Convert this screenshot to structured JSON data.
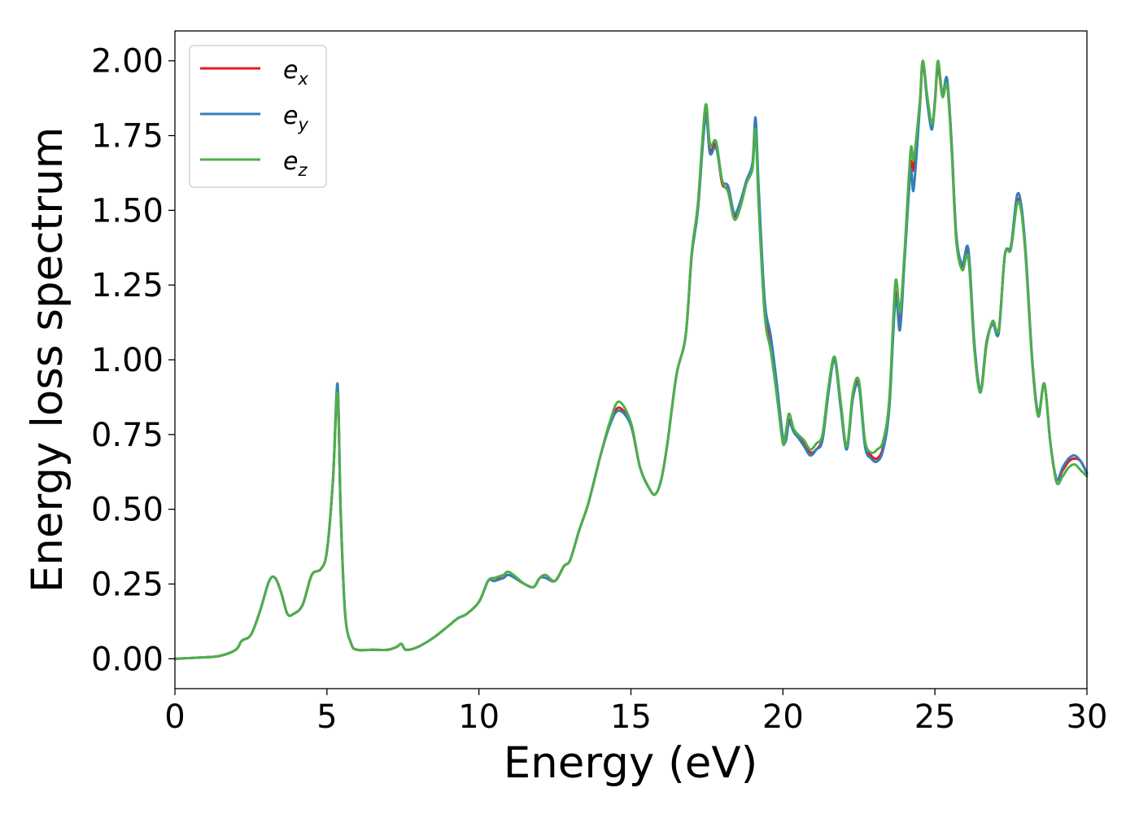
{
  "chart_data": {
    "type": "line",
    "xlabel": "Energy (eV)",
    "ylabel": "Energy loss spectrum",
    "xlim": [
      0,
      30
    ],
    "ylim": [
      -0.1,
      2.1
    ],
    "xticks": [
      0,
      5,
      10,
      15,
      20,
      25,
      30
    ],
    "xtick_labels": [
      "0",
      "5",
      "10",
      "15",
      "20",
      "25",
      "30"
    ],
    "yticks": [
      0,
      0.25,
      0.5,
      0.75,
      1.0,
      1.25,
      1.5,
      1.75,
      2.0
    ],
    "ytick_labels": [
      "0.00",
      "0.25",
      "0.50",
      "0.75",
      "1.00",
      "1.25",
      "1.50",
      "1.75",
      "2.00"
    ],
    "grid": false,
    "legend_position": "top-left",
    "series": [
      {
        "name": "e_x",
        "label_main": "e",
        "label_sub": "x",
        "color": "#e41a1c",
        "x": [
          0,
          1,
          1.5,
          2,
          2.2,
          2.5,
          2.8,
          3.1,
          3.3,
          3.5,
          3.7,
          3.9,
          4.2,
          4.5,
          4.8,
          5.0,
          5.2,
          5.35,
          5.45,
          5.6,
          5.8,
          6.0,
          6.5,
          7.0,
          7.3,
          7.45,
          7.6,
          8.0,
          8.5,
          9.0,
          9.3,
          9.6,
          10.0,
          10.3,
          10.5,
          10.8,
          11.0,
          11.5,
          11.8,
          12.0,
          12.2,
          12.5,
          12.8,
          13.0,
          13.3,
          13.6,
          14.0,
          14.3,
          14.6,
          15.0,
          15.3,
          15.6,
          15.8,
          16.0,
          16.2,
          16.5,
          16.8,
          17.0,
          17.2,
          17.45,
          17.6,
          17.8,
          18.0,
          18.2,
          18.4,
          18.6,
          18.8,
          19.0,
          19.1,
          19.2,
          19.4,
          19.6,
          19.8,
          20.0,
          20.1,
          20.2,
          20.35,
          20.5,
          20.7,
          20.9,
          21.1,
          21.3,
          21.5,
          21.7,
          21.9,
          22.1,
          22.3,
          22.5,
          22.7,
          22.9,
          23.1,
          23.3,
          23.5,
          23.7,
          23.85,
          24.0,
          24.2,
          24.3,
          24.5,
          24.6,
          24.75,
          24.9,
          25.0,
          25.1,
          25.25,
          25.4,
          25.55,
          25.7,
          25.9,
          26.1,
          26.3,
          26.5,
          26.7,
          26.9,
          27.1,
          27.3,
          27.5,
          27.7,
          27.85,
          28.0,
          28.2,
          28.4,
          28.6,
          28.8,
          29.0,
          29.2,
          29.4,
          29.6,
          29.8,
          30.0
        ],
        "y": [
          0,
          0.005,
          0.01,
          0.03,
          0.06,
          0.08,
          0.16,
          0.26,
          0.27,
          0.22,
          0.15,
          0.15,
          0.18,
          0.28,
          0.3,
          0.36,
          0.6,
          0.9,
          0.5,
          0.15,
          0.05,
          0.03,
          0.03,
          0.03,
          0.04,
          0.05,
          0.03,
          0.04,
          0.07,
          0.11,
          0.135,
          0.15,
          0.19,
          0.26,
          0.27,
          0.27,
          0.28,
          0.25,
          0.24,
          0.27,
          0.28,
          0.26,
          0.31,
          0.33,
          0.43,
          0.52,
          0.68,
          0.78,
          0.84,
          0.78,
          0.64,
          0.57,
          0.55,
          0.6,
          0.72,
          0.95,
          1.08,
          1.35,
          1.5,
          1.82,
          1.7,
          1.72,
          1.59,
          1.57,
          1.48,
          1.52,
          1.6,
          1.65,
          1.8,
          1.55,
          1.18,
          1.05,
          0.9,
          0.73,
          0.74,
          0.8,
          0.76,
          0.74,
          0.72,
          0.69,
          0.7,
          0.74,
          0.9,
          1.0,
          0.85,
          0.71,
          0.88,
          0.92,
          0.72,
          0.68,
          0.67,
          0.71,
          0.85,
          1.22,
          1.12,
          1.34,
          1.65,
          1.64,
          1.85,
          1.99,
          1.87,
          1.78,
          1.86,
          1.98,
          1.88,
          1.93,
          1.72,
          1.42,
          1.31,
          1.36,
          1.05,
          0.9,
          1.06,
          1.12,
          1.1,
          1.35,
          1.38,
          1.53,
          1.5,
          1.33,
          1.0,
          0.82,
          0.92,
          0.72,
          0.6,
          0.63,
          0.66,
          0.67,
          0.66,
          0.62
        ]
      },
      {
        "name": "e_y",
        "label_main": "e",
        "label_sub": "y",
        "color": "#377eb8",
        "x": [
          0,
          1,
          1.5,
          2,
          2.2,
          2.5,
          2.8,
          3.1,
          3.3,
          3.5,
          3.7,
          3.9,
          4.2,
          4.5,
          4.8,
          5.0,
          5.2,
          5.35,
          5.45,
          5.6,
          5.8,
          6.0,
          6.5,
          7.0,
          7.3,
          7.45,
          7.6,
          8.0,
          8.5,
          9.0,
          9.3,
          9.6,
          10.0,
          10.3,
          10.5,
          10.8,
          11.0,
          11.5,
          11.8,
          12.0,
          12.2,
          12.5,
          12.8,
          13.0,
          13.3,
          13.6,
          14.0,
          14.3,
          14.6,
          15.0,
          15.3,
          15.6,
          15.8,
          16.0,
          16.2,
          16.5,
          16.8,
          17.0,
          17.2,
          17.45,
          17.6,
          17.8,
          18.0,
          18.2,
          18.4,
          18.6,
          18.8,
          19.0,
          19.1,
          19.2,
          19.4,
          19.6,
          19.8,
          20.0,
          20.1,
          20.2,
          20.35,
          20.5,
          20.7,
          20.9,
          21.1,
          21.3,
          21.5,
          21.7,
          21.9,
          22.1,
          22.3,
          22.5,
          22.7,
          22.9,
          23.1,
          23.3,
          23.5,
          23.7,
          23.85,
          24.0,
          24.2,
          24.3,
          24.5,
          24.6,
          24.75,
          24.9,
          25.0,
          25.1,
          25.25,
          25.4,
          25.55,
          25.7,
          25.9,
          26.1,
          26.3,
          26.5,
          26.7,
          26.9,
          27.1,
          27.3,
          27.5,
          27.7,
          27.85,
          28.0,
          28.2,
          28.4,
          28.6,
          28.8,
          29.0,
          29.2,
          29.4,
          29.6,
          29.8,
          30.0
        ],
        "y": [
          0,
          0.005,
          0.01,
          0.03,
          0.06,
          0.08,
          0.16,
          0.26,
          0.27,
          0.22,
          0.15,
          0.15,
          0.18,
          0.28,
          0.3,
          0.36,
          0.6,
          0.92,
          0.5,
          0.15,
          0.05,
          0.03,
          0.03,
          0.03,
          0.04,
          0.05,
          0.03,
          0.04,
          0.07,
          0.11,
          0.135,
          0.15,
          0.19,
          0.26,
          0.26,
          0.27,
          0.28,
          0.25,
          0.24,
          0.27,
          0.27,
          0.26,
          0.31,
          0.33,
          0.43,
          0.52,
          0.68,
          0.78,
          0.83,
          0.78,
          0.64,
          0.57,
          0.55,
          0.6,
          0.72,
          0.95,
          1.08,
          1.35,
          1.5,
          1.81,
          1.69,
          1.71,
          1.6,
          1.58,
          1.49,
          1.53,
          1.6,
          1.66,
          1.81,
          1.58,
          1.2,
          1.08,
          0.92,
          0.74,
          0.73,
          0.79,
          0.76,
          0.74,
          0.71,
          0.68,
          0.7,
          0.73,
          0.89,
          1.0,
          0.84,
          0.7,
          0.87,
          0.91,
          0.71,
          0.67,
          0.66,
          0.7,
          0.84,
          1.2,
          1.1,
          1.33,
          1.63,
          1.57,
          1.84,
          2.0,
          1.86,
          1.77,
          1.87,
          1.99,
          1.89,
          1.94,
          1.72,
          1.42,
          1.32,
          1.37,
          1.05,
          0.9,
          1.06,
          1.12,
          1.09,
          1.35,
          1.38,
          1.55,
          1.51,
          1.34,
          1.0,
          0.82,
          0.92,
          0.72,
          0.6,
          0.64,
          0.67,
          0.68,
          0.66,
          0.62
        ]
      },
      {
        "name": "e_z",
        "label_main": "e",
        "label_sub": "z",
        "color": "#4daf4a",
        "x": [
          0,
          1,
          1.5,
          2,
          2.2,
          2.5,
          2.8,
          3.1,
          3.3,
          3.5,
          3.7,
          3.9,
          4.2,
          4.5,
          4.8,
          5.0,
          5.2,
          5.35,
          5.45,
          5.6,
          5.8,
          6.0,
          6.5,
          7.0,
          7.3,
          7.45,
          7.6,
          8.0,
          8.5,
          9.0,
          9.3,
          9.6,
          10.0,
          10.3,
          10.5,
          10.8,
          11.0,
          11.5,
          11.8,
          12.0,
          12.2,
          12.5,
          12.8,
          13.0,
          13.3,
          13.6,
          14.0,
          14.3,
          14.6,
          15.0,
          15.3,
          15.6,
          15.8,
          16.0,
          16.2,
          16.5,
          16.8,
          17.0,
          17.2,
          17.45,
          17.6,
          17.8,
          18.0,
          18.2,
          18.4,
          18.6,
          18.8,
          19.0,
          19.1,
          19.2,
          19.4,
          19.6,
          19.8,
          20.0,
          20.1,
          20.2,
          20.35,
          20.5,
          20.7,
          20.9,
          21.1,
          21.3,
          21.5,
          21.7,
          21.9,
          22.1,
          22.3,
          22.5,
          22.7,
          22.9,
          23.1,
          23.3,
          23.5,
          23.7,
          23.85,
          24.0,
          24.2,
          24.3,
          24.5,
          24.6,
          24.75,
          24.9,
          25.0,
          25.1,
          25.25,
          25.4,
          25.55,
          25.7,
          25.9,
          26.1,
          26.3,
          26.5,
          26.7,
          26.9,
          27.1,
          27.3,
          27.5,
          27.7,
          27.85,
          28.0,
          28.2,
          28.4,
          28.6,
          28.8,
          29.0,
          29.2,
          29.4,
          29.6,
          29.8,
          30.0
        ],
        "y": [
          0,
          0.005,
          0.01,
          0.03,
          0.06,
          0.08,
          0.16,
          0.26,
          0.27,
          0.22,
          0.15,
          0.15,
          0.18,
          0.28,
          0.3,
          0.36,
          0.6,
          0.89,
          0.5,
          0.15,
          0.05,
          0.03,
          0.03,
          0.03,
          0.04,
          0.05,
          0.03,
          0.04,
          0.07,
          0.11,
          0.135,
          0.15,
          0.19,
          0.26,
          0.27,
          0.28,
          0.29,
          0.25,
          0.24,
          0.27,
          0.28,
          0.26,
          0.31,
          0.33,
          0.43,
          0.52,
          0.68,
          0.79,
          0.86,
          0.79,
          0.64,
          0.57,
          0.55,
          0.6,
          0.72,
          0.95,
          1.08,
          1.36,
          1.52,
          1.85,
          1.72,
          1.73,
          1.6,
          1.56,
          1.47,
          1.51,
          1.59,
          1.64,
          1.77,
          1.52,
          1.15,
          1.03,
          0.88,
          0.72,
          0.76,
          0.82,
          0.77,
          0.75,
          0.73,
          0.7,
          0.72,
          0.75,
          0.91,
          1.01,
          0.86,
          0.71,
          0.89,
          0.93,
          0.73,
          0.69,
          0.7,
          0.73,
          0.87,
          1.26,
          1.16,
          1.36,
          1.7,
          1.67,
          1.86,
          2.0,
          1.88,
          1.79,
          1.86,
          2.0,
          1.88,
          1.92,
          1.7,
          1.4,
          1.3,
          1.34,
          1.03,
          0.89,
          1.05,
          1.13,
          1.1,
          1.35,
          1.37,
          1.52,
          1.49,
          1.32,
          0.99,
          0.81,
          0.92,
          0.72,
          0.59,
          0.61,
          0.64,
          0.65,
          0.63,
          0.61
        ]
      }
    ]
  }
}
